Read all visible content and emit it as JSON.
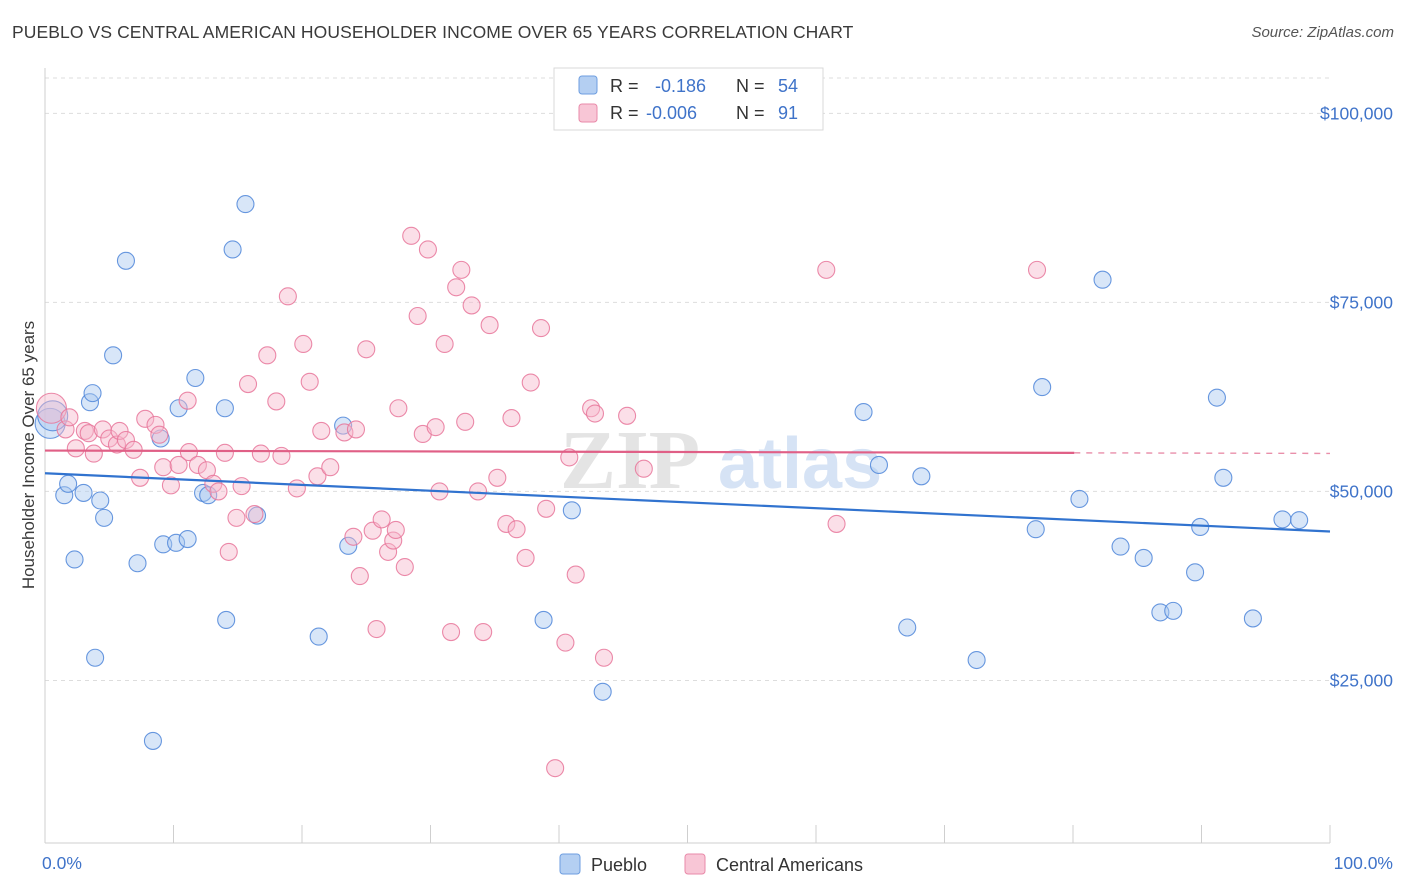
{
  "title": "PUEBLO VS CENTRAL AMERICAN HOUSEHOLDER INCOME OVER 65 YEARS CORRELATION CHART",
  "source": "Source: ZipAtlas.com",
  "watermark": {
    "zip": "ZIP",
    "atlas": "atlas"
  },
  "colors": {
    "pueblo": "#4f86d9",
    "pueblo_fill": "#a9c7ef",
    "central": "#e8759a",
    "central_fill": "#f6b9cc",
    "pueblo_line": "#3173cf",
    "central_line": "#e05f86",
    "tick_label": "#3f73c9",
    "grid": "#dddddd"
  },
  "legend_box": {
    "rows": [
      {
        "r_label": "R =",
        "r_value": "-0.186",
        "n_label": "N =",
        "n_value": "54"
      },
      {
        "r_label": "R =",
        "r_value": "-0.006",
        "n_label": "N =",
        "n_value": "91"
      }
    ]
  },
  "chart_data": {
    "type": "scatter",
    "title": "PUEBLO VS CENTRAL AMERICAN HOUSEHOLDER INCOME OVER 65 YEARS CORRELATION CHART",
    "xlabel": "",
    "ylabel": "Householder Income Over 65 years",
    "xlim": [
      0,
      100
    ],
    "ylim": [
      3500,
      106000
    ],
    "x_tick_labels": [
      "0.0%",
      "100.0%"
    ],
    "y_ticks": [
      25000,
      50000,
      75000,
      100000
    ],
    "y_tick_labels": [
      "$25,000",
      "$50,000",
      "$75,000",
      "$100,000"
    ],
    "grid": true,
    "legend_position": "bottom-center",
    "series": [
      {
        "name": "Pueblo",
        "points": [
          [
            0.4,
            59000
          ],
          [
            0.6,
            60000
          ],
          [
            1.5,
            49500
          ],
          [
            1.8,
            51000
          ],
          [
            2.3,
            41000
          ],
          [
            3.5,
            61800
          ],
          [
            3.7,
            63000
          ],
          [
            3.9,
            28000
          ],
          [
            4.3,
            48800
          ],
          [
            4.6,
            46500
          ],
          [
            5.3,
            68000
          ],
          [
            6.3,
            80500
          ],
          [
            7.2,
            40500
          ],
          [
            8.4,
            17000
          ],
          [
            9.0,
            57000
          ],
          [
            9.2,
            43000
          ],
          [
            10.2,
            43200
          ],
          [
            10.4,
            61000
          ],
          [
            11.1,
            43700
          ],
          [
            11.7,
            65000
          ],
          [
            12.3,
            49800
          ],
          [
            12.7,
            49500
          ],
          [
            14.0,
            61000
          ],
          [
            14.1,
            33000
          ],
          [
            14.6,
            82000
          ],
          [
            15.6,
            88000
          ],
          [
            16.5,
            46800
          ],
          [
            21.3,
            30800
          ],
          [
            23.2,
            58700
          ],
          [
            23.6,
            42800
          ],
          [
            3.0,
            49800
          ],
          [
            38.8,
            33000
          ],
          [
            41.0,
            47500
          ],
          [
            43.4,
            23500
          ],
          [
            63.7,
            60500
          ],
          [
            64.9,
            53500
          ],
          [
            67.1,
            32000
          ],
          [
            68.2,
            52000
          ],
          [
            72.5,
            27700
          ],
          [
            77.1,
            45000
          ],
          [
            77.6,
            63800
          ],
          [
            80.5,
            49000
          ],
          [
            82.3,
            78000
          ],
          [
            83.7,
            42700
          ],
          [
            85.5,
            41200
          ],
          [
            86.8,
            34000
          ],
          [
            87.8,
            34200
          ],
          [
            89.5,
            39300
          ],
          [
            89.9,
            45300
          ],
          [
            91.2,
            62400
          ],
          [
            91.7,
            51800
          ],
          [
            94.0,
            33200
          ],
          [
            96.3,
            46300
          ],
          [
            97.6,
            46200
          ]
        ]
      },
      {
        "name": "Central Americans",
        "points": [
          [
            0.5,
            61000
          ],
          [
            1.6,
            58200
          ],
          [
            1.9,
            59800
          ],
          [
            2.4,
            55700
          ],
          [
            3.1,
            58000
          ],
          [
            3.4,
            57700
          ],
          [
            3.8,
            55000
          ],
          [
            4.5,
            58200
          ],
          [
            5.0,
            57000
          ],
          [
            5.6,
            56200
          ],
          [
            5.8,
            58000
          ],
          [
            6.3,
            56800
          ],
          [
            6.9,
            55500
          ],
          [
            7.4,
            51800
          ],
          [
            7.8,
            59600
          ],
          [
            8.6,
            58800
          ],
          [
            8.9,
            57500
          ],
          [
            9.2,
            53200
          ],
          [
            9.8,
            50800
          ],
          [
            10.4,
            53500
          ],
          [
            11.1,
            62000
          ],
          [
            11.2,
            55200
          ],
          [
            11.9,
            53500
          ],
          [
            12.6,
            52800
          ],
          [
            13.1,
            51000
          ],
          [
            13.5,
            50000
          ],
          [
            14.0,
            55100
          ],
          [
            14.3,
            42000
          ],
          [
            14.9,
            46500
          ],
          [
            15.3,
            50700
          ],
          [
            15.8,
            64200
          ],
          [
            16.3,
            47000
          ],
          [
            16.8,
            55000
          ],
          [
            17.3,
            68000
          ],
          [
            18.0,
            61900
          ],
          [
            18.4,
            54700
          ],
          [
            18.9,
            75800
          ],
          [
            19.6,
            50400
          ],
          [
            20.1,
            69500
          ],
          [
            20.6,
            64500
          ],
          [
            21.2,
            52000
          ],
          [
            21.5,
            58000
          ],
          [
            22.2,
            53200
          ],
          [
            23.3,
            57800
          ],
          [
            24.0,
            44000
          ],
          [
            24.5,
            38800
          ],
          [
            25.0,
            68800
          ],
          [
            25.5,
            44800
          ],
          [
            25.8,
            31800
          ],
          [
            26.2,
            46300
          ],
          [
            26.7,
            42000
          ],
          [
            27.1,
            43500
          ],
          [
            27.5,
            61000
          ],
          [
            28.0,
            40000
          ],
          [
            28.5,
            83800
          ],
          [
            29.0,
            73200
          ],
          [
            29.4,
            57600
          ],
          [
            29.8,
            82000
          ],
          [
            30.4,
            58500
          ],
          [
            30.7,
            50000
          ],
          [
            31.1,
            69500
          ],
          [
            31.6,
            31400
          ],
          [
            32.0,
            77000
          ],
          [
            32.4,
            79300
          ],
          [
            32.7,
            59200
          ],
          [
            33.2,
            74600
          ],
          [
            33.7,
            50000
          ],
          [
            34.1,
            31400
          ],
          [
            34.6,
            72000
          ],
          [
            35.2,
            51800
          ],
          [
            35.9,
            45700
          ],
          [
            36.3,
            59700
          ],
          [
            36.7,
            45000
          ],
          [
            37.4,
            41200
          ],
          [
            37.8,
            64400
          ],
          [
            38.6,
            71600
          ],
          [
            39.0,
            47700
          ],
          [
            39.7,
            13400
          ],
          [
            40.5,
            30000
          ],
          [
            40.8,
            54500
          ],
          [
            41.3,
            39000
          ],
          [
            42.5,
            61000
          ],
          [
            42.8,
            60300
          ],
          [
            43.5,
            28000
          ],
          [
            45.3,
            60000
          ],
          [
            46.6,
            53000
          ],
          [
            60.8,
            79300
          ],
          [
            61.6,
            45700
          ],
          [
            77.2,
            79300
          ],
          [
            24.2,
            58200
          ],
          [
            27.3,
            44900
          ]
        ]
      }
    ],
    "trend_lines": [
      {
        "series": "Pueblo",
        "x": [
          0,
          100
        ],
        "y": [
          52400,
          44700
        ]
      },
      {
        "series": "Central Americans",
        "x": [
          0,
          80.1
        ],
        "y": [
          55400,
          55100
        ],
        "dashed_extension_to": 100
      }
    ]
  }
}
